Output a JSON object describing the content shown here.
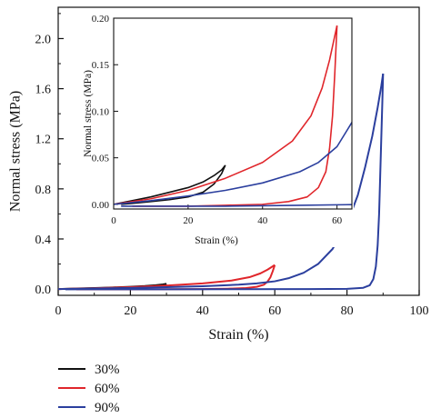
{
  "chart_data": [
    {
      "type": "line",
      "title": "",
      "xlabel": "Strain (%)",
      "ylabel": "Normal stress (MPa)",
      "xlim": [
        0,
        100
      ],
      "ylim": [
        -0.05,
        2.25
      ],
      "xticks": [
        0,
        20,
        40,
        60,
        80,
        100
      ],
      "yticks": [
        0.0,
        0.4,
        0.8,
        1.2,
        1.6,
        2.0
      ],
      "xtick_labels": [
        "0",
        "20",
        "40",
        "60",
        "80",
        "100"
      ],
      "ytick_labels": [
        "0.0",
        "0.4",
        "0.8",
        "1.2",
        "1.6",
        "2.0"
      ],
      "legend_position": "bottom-left, below plot",
      "grid": false,
      "series": [
        {
          "name": "30%",
          "color": "#111111",
          "loading": [
            [
              0,
              0.0
            ],
            [
              5,
              0.004
            ],
            [
              10,
              0.008
            ],
            [
              15,
              0.013
            ],
            [
              20,
              0.018
            ],
            [
              24,
              0.024
            ],
            [
              27,
              0.031
            ],
            [
              29,
              0.037
            ],
            [
              30,
              0.042
            ]
          ],
          "unloading": [
            [
              30,
              0.042
            ],
            [
              29,
              0.033
            ],
            [
              27,
              0.022
            ],
            [
              24,
              0.013
            ],
            [
              20,
              0.008
            ],
            [
              15,
              0.005
            ],
            [
              10,
              0.003
            ],
            [
              5,
              0.001
            ],
            [
              2,
              0.0
            ]
          ]
        },
        {
          "name": "60%",
          "color": "#e0262b",
          "loading": [
            [
              0,
              0.0
            ],
            [
              10,
              0.006
            ],
            [
              20,
              0.015
            ],
            [
              30,
              0.028
            ],
            [
              40,
              0.045
            ],
            [
              48,
              0.068
            ],
            [
              53,
              0.095
            ],
            [
              56,
              0.125
            ],
            [
              58,
              0.155
            ],
            [
              60,
              0.192
            ]
          ],
          "unloading": [
            [
              60,
              0.192
            ],
            [
              59.4,
              0.14
            ],
            [
              58.8,
              0.095
            ],
            [
              58,
              0.06
            ],
            [
              57,
              0.035
            ],
            [
              55,
              0.018
            ],
            [
              52,
              0.008
            ],
            [
              47,
              0.003
            ],
            [
              40,
              0.0
            ],
            [
              30,
              -0.001
            ],
            [
              20,
              -0.002
            ],
            [
              10,
              -0.002
            ],
            [
              5,
              -0.002
            ]
          ]
        },
        {
          "name": "90%",
          "color": "#2b3f9e",
          "loading": [
            [
              0,
              0.0
            ],
            [
              10,
              0.004
            ],
            [
              20,
              0.009
            ],
            [
              30,
              0.015
            ],
            [
              40,
              0.023
            ],
            [
              50,
              0.035
            ],
            [
              55,
              0.045
            ],
            [
              60,
              0.062
            ],
            [
              64,
              0.088
            ],
            [
              68,
              0.13
            ],
            [
              72,
              0.2
            ],
            [
              76,
              0.32
            ],
            [
              80,
              0.52
            ],
            [
              83,
              0.75
            ],
            [
              85,
              0.97
            ],
            [
              87,
              1.22
            ],
            [
              88.5,
              1.45
            ],
            [
              89.5,
              1.62
            ],
            [
              90,
              1.72
            ]
          ],
          "unloading": [
            [
              90,
              1.72
            ],
            [
              89.8,
              1.5
            ],
            [
              89.5,
              1.2
            ],
            [
              89.2,
              0.9
            ],
            [
              88.9,
              0.6
            ],
            [
              88.5,
              0.35
            ],
            [
              88,
              0.18
            ],
            [
              87.3,
              0.08
            ],
            [
              86.3,
              0.03
            ],
            [
              84.5,
              0.01
            ],
            [
              80,
              0.002
            ],
            [
              70,
              0.0
            ],
            [
              50,
              -0.001
            ],
            [
              30,
              -0.002
            ],
            [
              10,
              -0.002
            ],
            [
              2,
              -0.002
            ]
          ]
        }
      ]
    },
    {
      "type": "line",
      "title": "",
      "xlabel": "Strain (%)",
      "ylabel": "Normal stress (MPa)",
      "xlim": [
        0,
        64
      ],
      "ylim": [
        -0.005,
        0.2
      ],
      "xticks": [
        0,
        20,
        40,
        60
      ],
      "yticks": [
        0.0,
        0.05,
        0.1,
        0.15,
        0.2
      ],
      "xtick_labels": [
        "0",
        "20",
        "40",
        "60"
      ],
      "ytick_labels": [
        "0.00",
        "0.05",
        "0.10",
        "0.15",
        "0.20"
      ],
      "grid": false,
      "note": "inset zoom of the same three curves"
    }
  ]
}
